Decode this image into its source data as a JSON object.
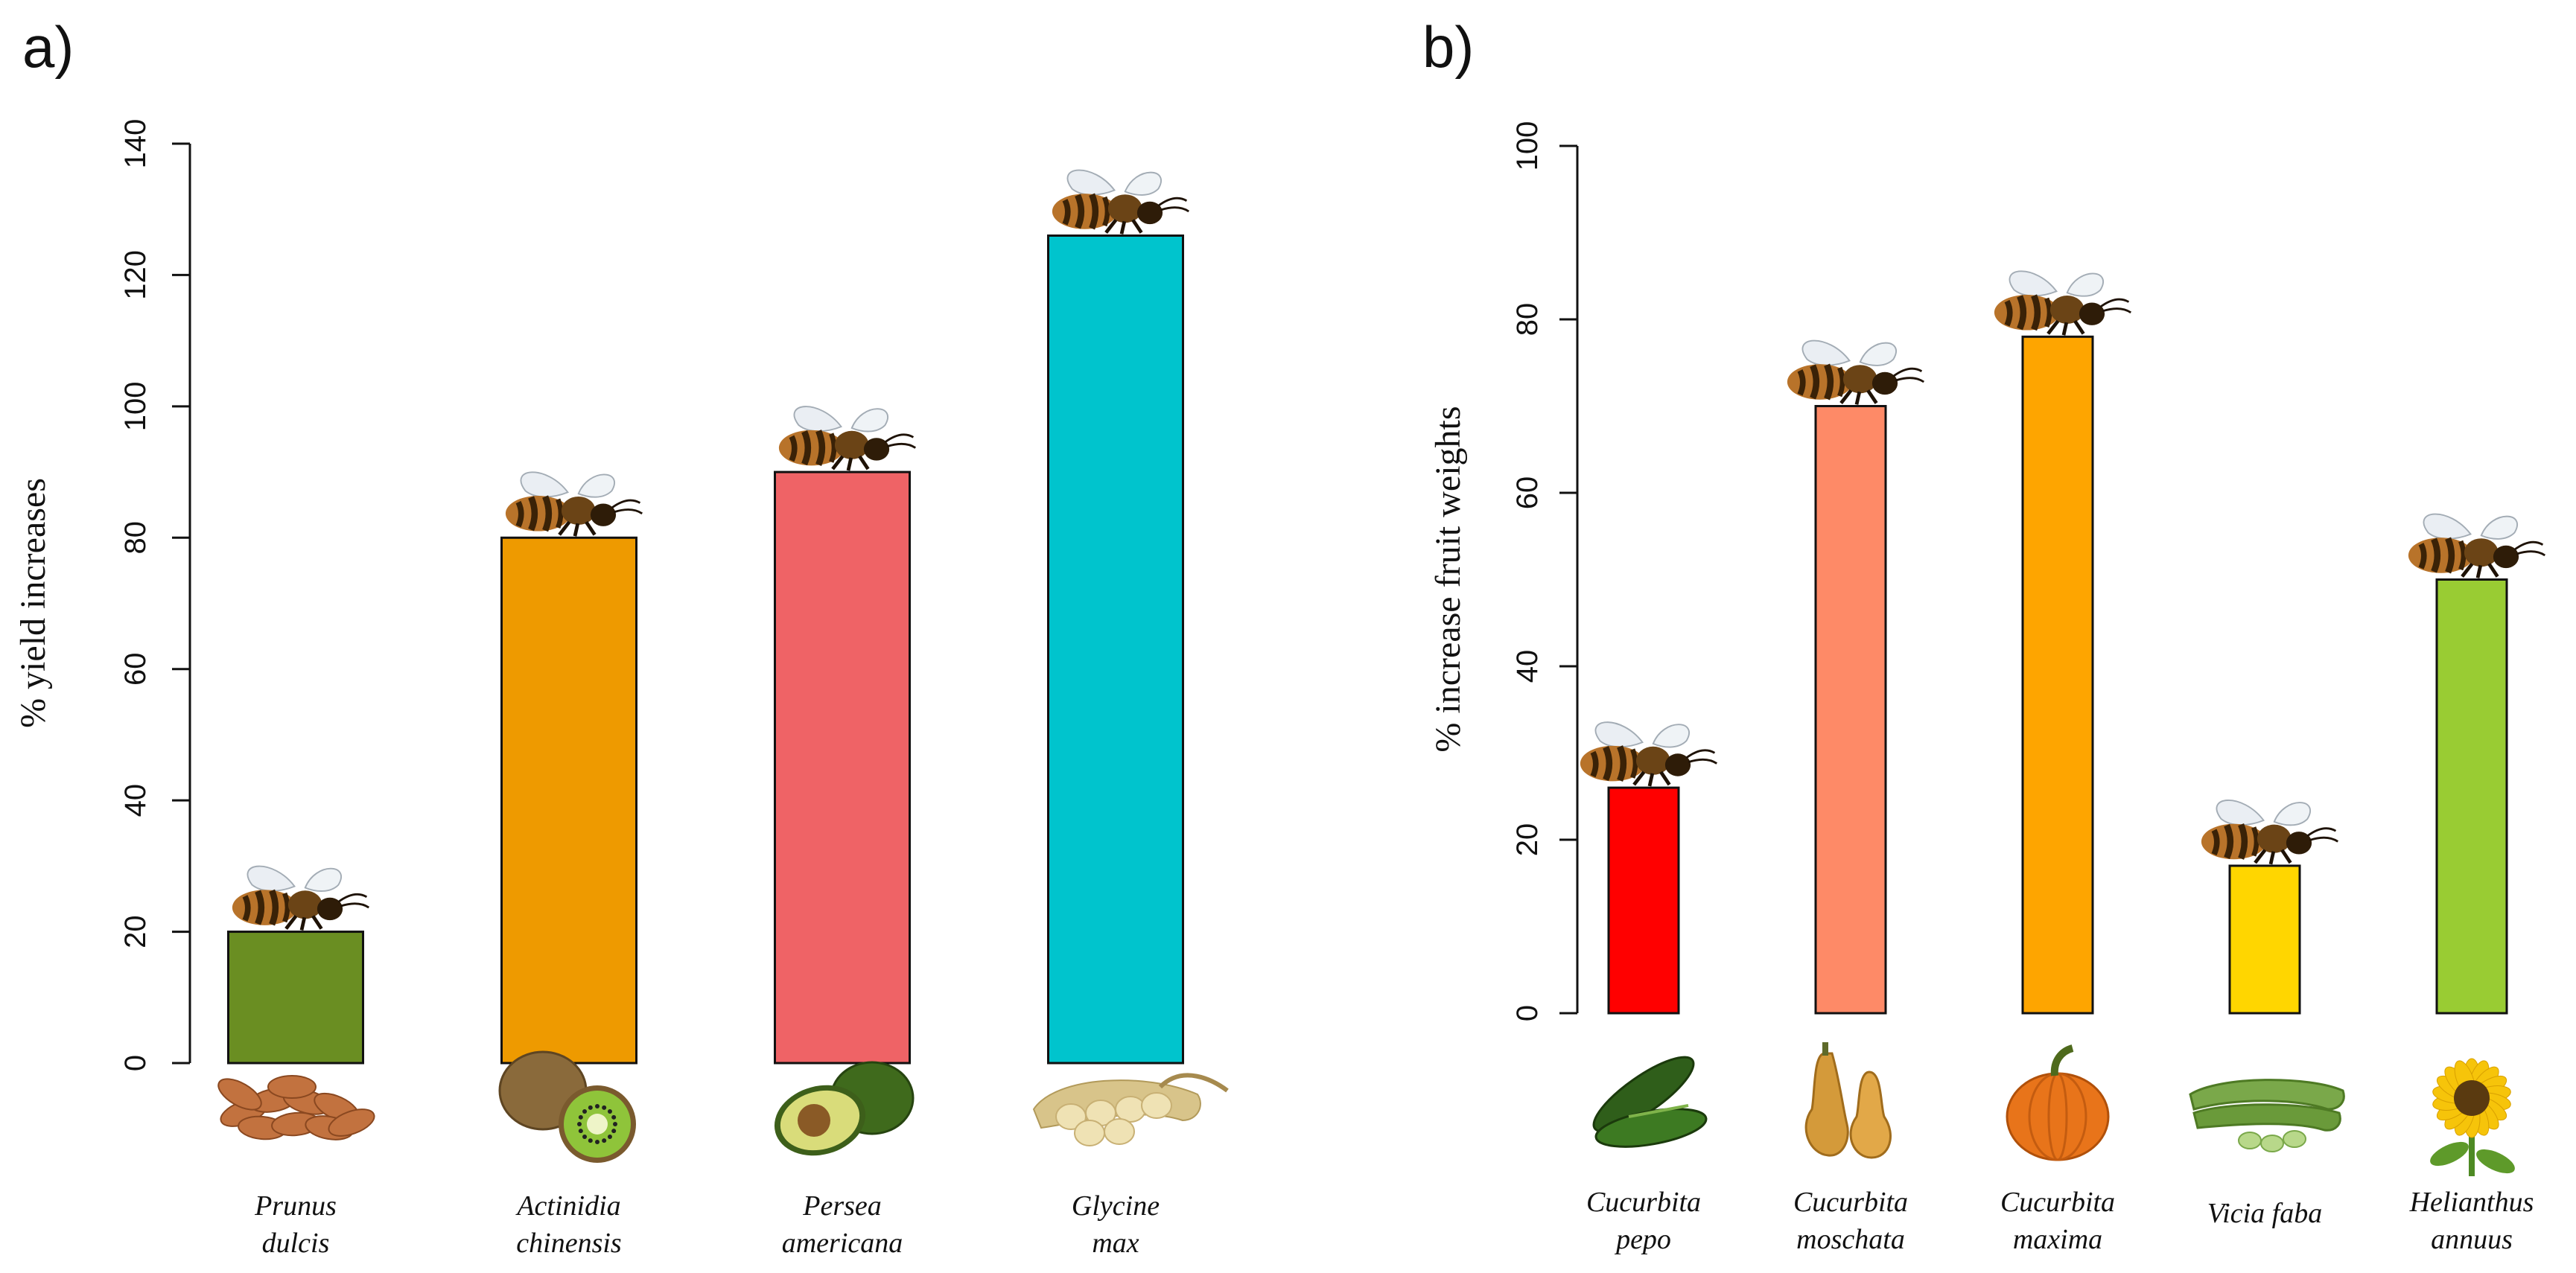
{
  "chart_data": [
    {
      "type": "bar",
      "panel_label": "a)",
      "ylabel": "% yield increases",
      "ylim": [
        0,
        140
      ],
      "yticks": [
        0,
        20,
        40,
        60,
        80,
        100,
        120,
        140
      ],
      "categories": [
        {
          "line1": "Prunus",
          "line2": "dulcis",
          "value": 20,
          "color": "#6a8e22",
          "image": "almond-icon"
        },
        {
          "line1": "Actinidia",
          "line2": "chinensis",
          "value": 80,
          "color": "#ee9a00",
          "image": "kiwi-icon"
        },
        {
          "line1": "Persea",
          "line2": "americana",
          "value": 90,
          "color": "#ef6366",
          "image": "avocado-icon"
        },
        {
          "line1": "Glycine",
          "line2": "max",
          "value": 126,
          "color": "#00c4cd",
          "image": "soybean-icon"
        }
      ],
      "bar_marker": "bee-icon"
    },
    {
      "type": "bar",
      "panel_label": "b)",
      "ylabel": "% increase fruit weights",
      "ylim": [
        0,
        100
      ],
      "yticks": [
        0,
        20,
        40,
        60,
        80,
        100
      ],
      "categories": [
        {
          "line1": "Cucurbita",
          "line2": "pepo",
          "value": 26,
          "color": "#ff0000",
          "image": "zucchini-icon"
        },
        {
          "line1": "Cucurbita",
          "line2": "moschata",
          "value": 70,
          "color": "#fe8a67",
          "image": "butternut-squash-icon"
        },
        {
          "line1": "Cucurbita",
          "line2": "maxima",
          "value": 78,
          "color": "#fea500",
          "image": "pumpkin-icon"
        },
        {
          "line1": "Vicia faba",
          "line2": "",
          "value": 17,
          "color": "#ffd600",
          "image": "broad-bean-icon"
        },
        {
          "line1": "Helianthus",
          "line2": "annuus",
          "value": 50,
          "color": "#99cc33",
          "image": "sunflower-icon"
        }
      ],
      "bar_marker": "bee-icon"
    }
  ]
}
